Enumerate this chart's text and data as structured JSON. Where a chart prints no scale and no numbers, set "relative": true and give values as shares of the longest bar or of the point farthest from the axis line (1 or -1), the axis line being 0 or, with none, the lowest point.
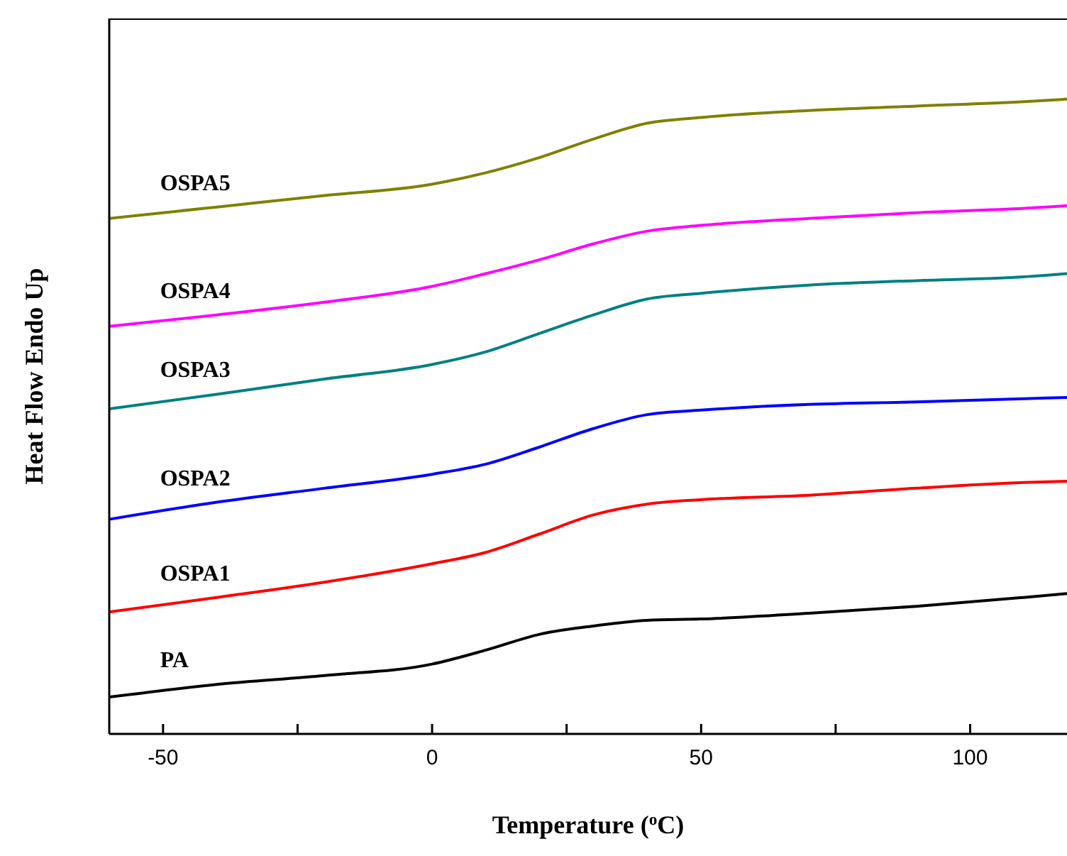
{
  "chart_data": {
    "type": "line",
    "relative": true,
    "xlabel": "Temperature ($^{o}$C)",
    "ylabel": "Heat Flow Endo Up",
    "xlim": [
      -60,
      118
    ],
    "xticks": [
      -50,
      {
        "value": -25,
        "label": null
      },
      0,
      {
        "value": 25,
        "label": null
      },
      50,
      {
        "value": 75,
        "label": null
      },
      100
    ],
    "x": [
      -60,
      -40,
      -20,
      0,
      10,
      20,
      30,
      40,
      50,
      70,
      90,
      110,
      118
    ],
    "legend": false,
    "grid": false,
    "marker": "none",
    "line_style": "solid",
    "series": [
      {
        "name": "PA",
        "color": "#000000",
        "values": [
          0.058,
          0.078,
          0.092,
          0.11,
          0.132,
          0.157,
          0.17,
          0.179,
          0.181,
          0.19,
          0.201,
          0.215,
          0.221
        ]
      },
      {
        "name": "OSPA1",
        "color": "#ff0000",
        "values": [
          0.192,
          0.215,
          0.239,
          0.268,
          0.286,
          0.315,
          0.345,
          0.362,
          0.369,
          0.376,
          0.387,
          0.396,
          0.398
        ]
      },
      {
        "name": "OSPA2",
        "color": "#0000ff",
        "values": [
          0.338,
          0.365,
          0.387,
          0.409,
          0.425,
          0.452,
          0.481,
          0.503,
          0.51,
          0.519,
          0.523,
          0.528,
          0.53
        ]
      },
      {
        "name": "OSPA3",
        "color": "#008080",
        "values": [
          0.512,
          0.535,
          0.559,
          0.582,
          0.602,
          0.631,
          0.66,
          0.685,
          0.694,
          0.707,
          0.714,
          0.72,
          0.725
        ]
      },
      {
        "name": "OSPA4",
        "color": "#ff00ff",
        "values": [
          0.642,
          0.66,
          0.68,
          0.705,
          0.725,
          0.747,
          0.772,
          0.792,
          0.801,
          0.812,
          0.821,
          0.828,
          0.832
        ]
      },
      {
        "name": "OSPA5",
        "color": "#808000",
        "values": [
          0.812,
          0.83,
          0.848,
          0.866,
          0.884,
          0.908,
          0.937,
          0.962,
          0.971,
          0.982,
          0.989,
          0.996,
          1.0
        ]
      }
    ]
  }
}
